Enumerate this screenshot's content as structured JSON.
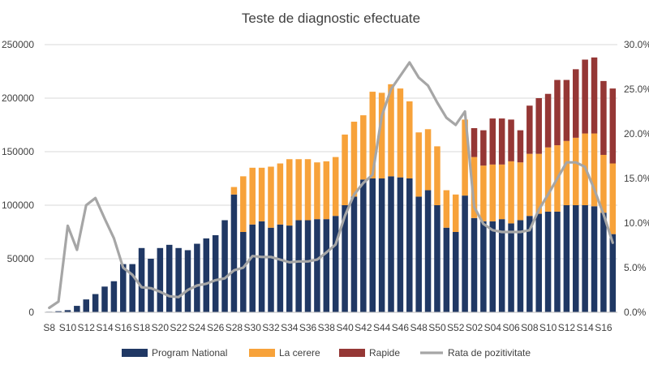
{
  "chart_data": {
    "type": "bar",
    "stacked": true,
    "title": "Teste de diagnostic efectuate",
    "categories": [
      "S8",
      "S9",
      "S10",
      "S11",
      "S12",
      "S13",
      "S14",
      "S15",
      "S16",
      "S17",
      "S18",
      "S19",
      "S20",
      "S21",
      "S22",
      "S23",
      "S24",
      "S25",
      "S26",
      "S27",
      "S28",
      "S29",
      "S30",
      "S31",
      "S32",
      "S33",
      "S34",
      "S35",
      "S36",
      "S37",
      "S38",
      "S39",
      "S40",
      "S41",
      "S42",
      "S43",
      "S44",
      "S45",
      "S46",
      "S47",
      "S48",
      "S49",
      "S50",
      "S51",
      "S52",
      "S53",
      "S01",
      "S02",
      "S03",
      "S04",
      "S05",
      "S06",
      "S07",
      "S08",
      "S09",
      "S10",
      "S11",
      "S12",
      "S13",
      "S14",
      "S15",
      "S16"
    ],
    "x_tick_labels": [
      "S8",
      "S10",
      "S12",
      "S14",
      "S16",
      "S18",
      "S20",
      "S22",
      "S24",
      "S26",
      "S28",
      "S30",
      "S32",
      "S34",
      "S36",
      "S38",
      "S40",
      "S42",
      "S44",
      "S46",
      "S48",
      "S50",
      "S52",
      "S02",
      "S04",
      "S06",
      "S08",
      "S10",
      "S12",
      "S14",
      "S16"
    ],
    "series": [
      {
        "name": "Program National",
        "color": "#203864",
        "axis": "left",
        "values": [
          500,
          1000,
          2000,
          6000,
          12000,
          17000,
          24000,
          29000,
          45000,
          45000,
          60000,
          50000,
          60000,
          63000,
          60000,
          58000,
          64000,
          69000,
          72000,
          86000,
          110000,
          75000,
          82000,
          85000,
          79000,
          82000,
          81000,
          86000,
          86000,
          87000,
          87000,
          90000,
          100000,
          108000,
          124000,
          125000,
          125000,
          127000,
          126000,
          125000,
          108000,
          114000,
          100000,
          79000,
          75000,
          109000,
          88000,
          85000,
          85000,
          87000,
          83000,
          86000,
          90000,
          92000,
          94000,
          94000,
          100000,
          100000,
          100000,
          99000,
          93000,
          73000
        ]
      },
      {
        "name": "La cerere",
        "color": "#F7A23A",
        "axis": "left",
        "values": [
          0,
          0,
          0,
          0,
          0,
          0,
          0,
          0,
          0,
          0,
          0,
          0,
          0,
          0,
          0,
          0,
          0,
          0,
          0,
          0,
          7000,
          52000,
          53000,
          50000,
          57000,
          57000,
          62000,
          57000,
          57000,
          53000,
          54000,
          55000,
          66000,
          70000,
          60000,
          81000,
          80000,
          86000,
          83000,
          72000,
          60000,
          57000,
          55000,
          35000,
          35000,
          71000,
          57000,
          52000,
          53000,
          51000,
          58000,
          54000,
          58000,
          56000,
          60000,
          62000,
          60000,
          63000,
          67000,
          68000,
          54000,
          66000
        ]
      },
      {
        "name": "Rapide",
        "color": "#953735",
        "axis": "left",
        "values": [
          0,
          0,
          0,
          0,
          0,
          0,
          0,
          0,
          0,
          0,
          0,
          0,
          0,
          0,
          0,
          0,
          0,
          0,
          0,
          0,
          0,
          0,
          0,
          0,
          0,
          0,
          0,
          0,
          0,
          0,
          0,
          0,
          0,
          0,
          0,
          0,
          0,
          0,
          0,
          0,
          0,
          0,
          0,
          0,
          0,
          0,
          27000,
          33000,
          43000,
          43000,
          39000,
          30000,
          45000,
          52000,
          50000,
          61000,
          57000,
          64000,
          69000,
          71000,
          69000,
          70000
        ]
      },
      {
        "name": "Rata de pozitivitate",
        "type": "line",
        "color": "#A6A6A6",
        "axis": "right",
        "values": [
          0.5,
          1.2,
          9.7,
          7.0,
          12.0,
          12.8,
          10.5,
          8.3,
          5.0,
          4.2,
          2.8,
          2.7,
          2.3,
          1.8,
          1.7,
          2.5,
          3.0,
          3.2,
          3.6,
          3.8,
          4.7,
          5.0,
          6.3,
          6.2,
          6.2,
          5.9,
          5.6,
          5.7,
          5.7,
          5.9,
          6.7,
          7.6,
          10.8,
          13.2,
          14.5,
          15.4,
          22.0,
          25.0,
          26.5,
          28.0,
          26.3,
          25.4,
          23.5,
          21.8,
          21.0,
          22.5,
          11.8,
          9.9,
          9.2,
          9.0,
          9.0,
          9.0,
          9.2,
          11.5,
          13.2,
          15.0,
          16.8,
          16.8,
          16.3,
          13.8,
          11.0,
          7.8
        ]
      }
    ],
    "y_left": {
      "min": 0,
      "max": 250000,
      "step": 50000,
      "tick_labels": [
        "0",
        "50000",
        "100000",
        "150000",
        "200000",
        "250000"
      ]
    },
    "y_right": {
      "min": 0,
      "max": 30,
      "step": 5,
      "tick_labels": [
        "0.0%",
        "5.0%",
        "10.0%",
        "15.0%",
        "20.0%",
        "25.0%",
        "30.0%"
      ]
    },
    "grid": true,
    "legend": "bottom"
  }
}
